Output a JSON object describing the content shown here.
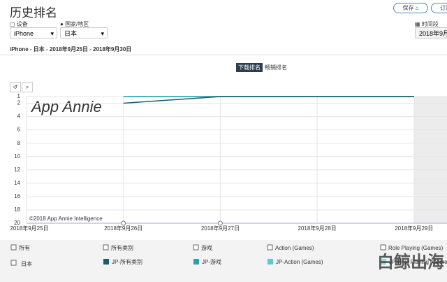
{
  "header": {
    "title": "历史排名",
    "save": "保存",
    "subscribe": "订阅"
  },
  "filters": {
    "device_label": "设备",
    "device": "iPhone",
    "country_label": "国家/地区",
    "country": "日本",
    "time_label": "时间段",
    "time": "2018年9月"
  },
  "subtitle": "iPhone - 日本 - 2018年9月25日 - 2018年9月30日",
  "tabs": [
    "下载排名",
    "畅销排名"
  ],
  "chart_data": {
    "type": "line",
    "watermark": "App Annie",
    "copyright": "©2018 App Annie Intelligence",
    "categories": [
      "2018年9月25日",
      "2018年9月26日",
      "2018年9月27日",
      "2018年9月28日",
      "2018年9月29日"
    ],
    "series": [
      {
        "name": "JP-所有类别",
        "color": "#1f5b6b",
        "values": [
          null,
          2,
          1,
          1,
          1
        ]
      },
      {
        "name": "JP-游戏",
        "color": "#2aa3ab",
        "values": [
          null,
          1,
          1,
          1,
          1
        ]
      },
      {
        "name": "JP-Action (Games)",
        "color": "#5cc9d2",
        "values": [
          null,
          1,
          1,
          1,
          1
        ]
      },
      {
        "name": "JP-Role Playing (Games)",
        "color": "#8fd8de",
        "values": [
          null,
          null,
          null,
          null,
          null
        ]
      }
    ],
    "ylim": [
      1,
      20
    ],
    "inverted": true,
    "yticks": [
      1,
      2,
      4,
      6,
      8,
      10,
      12,
      14,
      16,
      18,
      20
    ],
    "grid": true
  },
  "filter_row": [
    "所有",
    "所有类别",
    "游戏",
    "Action (Games)",
    "Role Playing (Games)"
  ],
  "country_check": "日本",
  "overlay": "白鲸出海"
}
